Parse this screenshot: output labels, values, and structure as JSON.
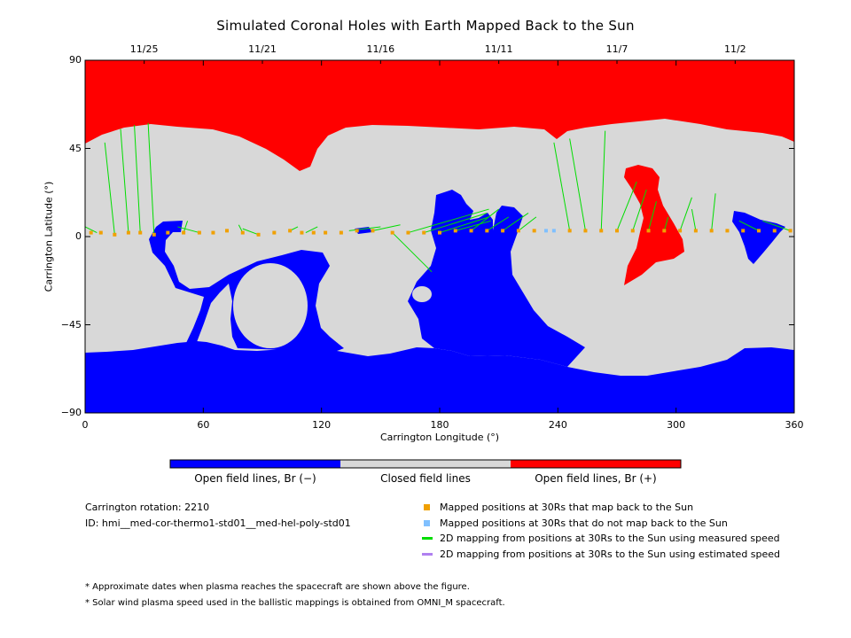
{
  "title": "Simulated Coronal Holes with Earth Mapped Back to the Sun",
  "chart_data": {
    "type": "map",
    "xlabel": "Carrington Longitude (°)",
    "ylabel": "Carrington Latitude (°)",
    "xlim": [
      0,
      360
    ],
    "ylim": [
      -90,
      90
    ],
    "x_ticks": [
      "0",
      "60",
      "120",
      "180",
      "240",
      "300",
      "360"
    ],
    "y_ticks": [
      "90",
      "45",
      "0",
      "−45",
      "−90"
    ],
    "top_dates": [
      {
        "label": "11/25",
        "lon": 30
      },
      {
        "label": "11/21",
        "lon": 90
      },
      {
        "label": "11/16",
        "lon": 150
      },
      {
        "label": "11/11",
        "lon": 210
      },
      {
        "label": "11/7",
        "lon": 270
      },
      {
        "label": "11/2",
        "lon": 330
      }
    ],
    "colors": {
      "open_negative": "#0000ff",
      "closed": "#d8d8d8",
      "open_positive": "#ff0000",
      "mapped": "#f0a000",
      "not_mapped": "#80c0ff",
      "measured_line": "#00dd00",
      "estimated_line": "#b080f0"
    },
    "mapped_points": [
      [
        3,
        2
      ],
      [
        8,
        2
      ],
      [
        15,
        1
      ],
      [
        22,
        2
      ],
      [
        28,
        2
      ],
      [
        35,
        1
      ],
      [
        42,
        2
      ],
      [
        50,
        2
      ],
      [
        58,
        2
      ],
      [
        65,
        2
      ],
      [
        72,
        3
      ],
      [
        80,
        2
      ],
      [
        88,
        1
      ],
      [
        96,
        2
      ],
      [
        104,
        3
      ],
      [
        110,
        2
      ],
      [
        116,
        2
      ],
      [
        122,
        2
      ],
      [
        130,
        2
      ],
      [
        138,
        3
      ],
      [
        146,
        3
      ],
      [
        156,
        2
      ],
      [
        164,
        2
      ],
      [
        172,
        2
      ],
      [
        180,
        2
      ],
      [
        188,
        3
      ],
      [
        196,
        3
      ],
      [
        204,
        3
      ],
      [
        212,
        3
      ],
      [
        220,
        3
      ],
      [
        228,
        3
      ],
      [
        246,
        3
      ],
      [
        254,
        3
      ],
      [
        262,
        3
      ],
      [
        270,
        3
      ],
      [
        278,
        3
      ],
      [
        286,
        3
      ],
      [
        294,
        3
      ],
      [
        302,
        3
      ],
      [
        310,
        3
      ],
      [
        318,
        3
      ],
      [
        326,
        3
      ],
      [
        334,
        3
      ],
      [
        342,
        3
      ],
      [
        350,
        3
      ],
      [
        358,
        3
      ]
    ],
    "unmapped_points": [
      [
        234,
        3
      ],
      [
        238,
        3
      ]
    ],
    "mapping_lines": [
      [
        [
          6,
          2
        ],
        [
          0,
          5
        ]
      ],
      [
        [
          15,
          1
        ],
        [
          10,
          48
        ]
      ],
      [
        [
          22,
          2
        ],
        [
          18,
          55
        ]
      ],
      [
        [
          28,
          2
        ],
        [
          25,
          57
        ]
      ],
      [
        [
          35,
          1
        ],
        [
          32,
          58
        ]
      ],
      [
        [
          50,
          2
        ],
        [
          52,
          8
        ]
      ],
      [
        [
          58,
          2
        ],
        [
          47,
          5
        ]
      ],
      [
        [
          80,
          2
        ],
        [
          78,
          6
        ]
      ],
      [
        [
          88,
          1
        ],
        [
          80,
          4
        ]
      ],
      [
        [
          164,
          2
        ],
        [
          205,
          14
        ]
      ],
      [
        [
          172,
          2
        ],
        [
          204,
          12
        ]
      ],
      [
        [
          180,
          2
        ],
        [
          205,
          10
        ]
      ],
      [
        [
          188,
          3
        ],
        [
          206,
          8
        ]
      ],
      [
        [
          196,
          3
        ],
        [
          210,
          14
        ]
      ],
      [
        [
          204,
          3
        ],
        [
          215,
          10
        ]
      ],
      [
        [
          212,
          3
        ],
        [
          225,
          12
        ]
      ],
      [
        [
          220,
          3
        ],
        [
          229,
          10
        ]
      ],
      [
        [
          246,
          3
        ],
        [
          238,
          48
        ]
      ],
      [
        [
          254,
          3
        ],
        [
          246,
          50
        ]
      ],
      [
        [
          262,
          3
        ],
        [
          264,
          54
        ]
      ],
      [
        [
          270,
          3
        ],
        [
          280,
          28
        ]
      ],
      [
        [
          278,
          3
        ],
        [
          285,
          24
        ]
      ],
      [
        [
          286,
          3
        ],
        [
          290,
          18
        ]
      ],
      [
        [
          294,
          3
        ],
        [
          296,
          10
        ]
      ],
      [
        [
          302,
          3
        ],
        [
          308,
          20
        ]
      ],
      [
        [
          310,
          3
        ],
        [
          308,
          14
        ]
      ],
      [
        [
          318,
          3
        ],
        [
          320,
          22
        ]
      ],
      [
        [
          342,
          3
        ],
        [
          332,
          8
        ]
      ],
      [
        [
          358,
          3
        ],
        [
          344,
          8
        ]
      ],
      [
        [
          156,
          2
        ],
        [
          176,
          -18
        ]
      ],
      [
        [
          146,
          3
        ],
        [
          160,
          6
        ]
      ],
      [
        [
          134,
          3
        ],
        [
          150,
          5
        ]
      ],
      [
        [
          112,
          2
        ],
        [
          118,
          5
        ]
      ],
      [
        [
          104,
          3
        ],
        [
          108,
          5
        ]
      ]
    ]
  },
  "colorbar": {
    "labels": [
      "Open field lines, Br (−)",
      "Closed field lines",
      "Open field lines, Br (+)"
    ]
  },
  "info": {
    "rotation": "Carrington rotation: 2210",
    "id": "ID: hmi__med-cor-thermo1-std01__med-hel-poly-std01"
  },
  "legend": [
    "Mapped positions at 30Rs that map back to the Sun",
    "Mapped positions at 30Rs that do not map back to the Sun",
    "2D mapping from positions at 30Rs to the Sun using measured speed",
    "2D mapping from positions at 30Rs to the Sun using estimated speed"
  ],
  "footnotes": [
    "* Approximate dates when plasma reaches the spacecraft are shown above the figure.",
    "* Solar wind plasma speed used in the ballistic mappings is obtained from OMNI_M spacecraft."
  ]
}
